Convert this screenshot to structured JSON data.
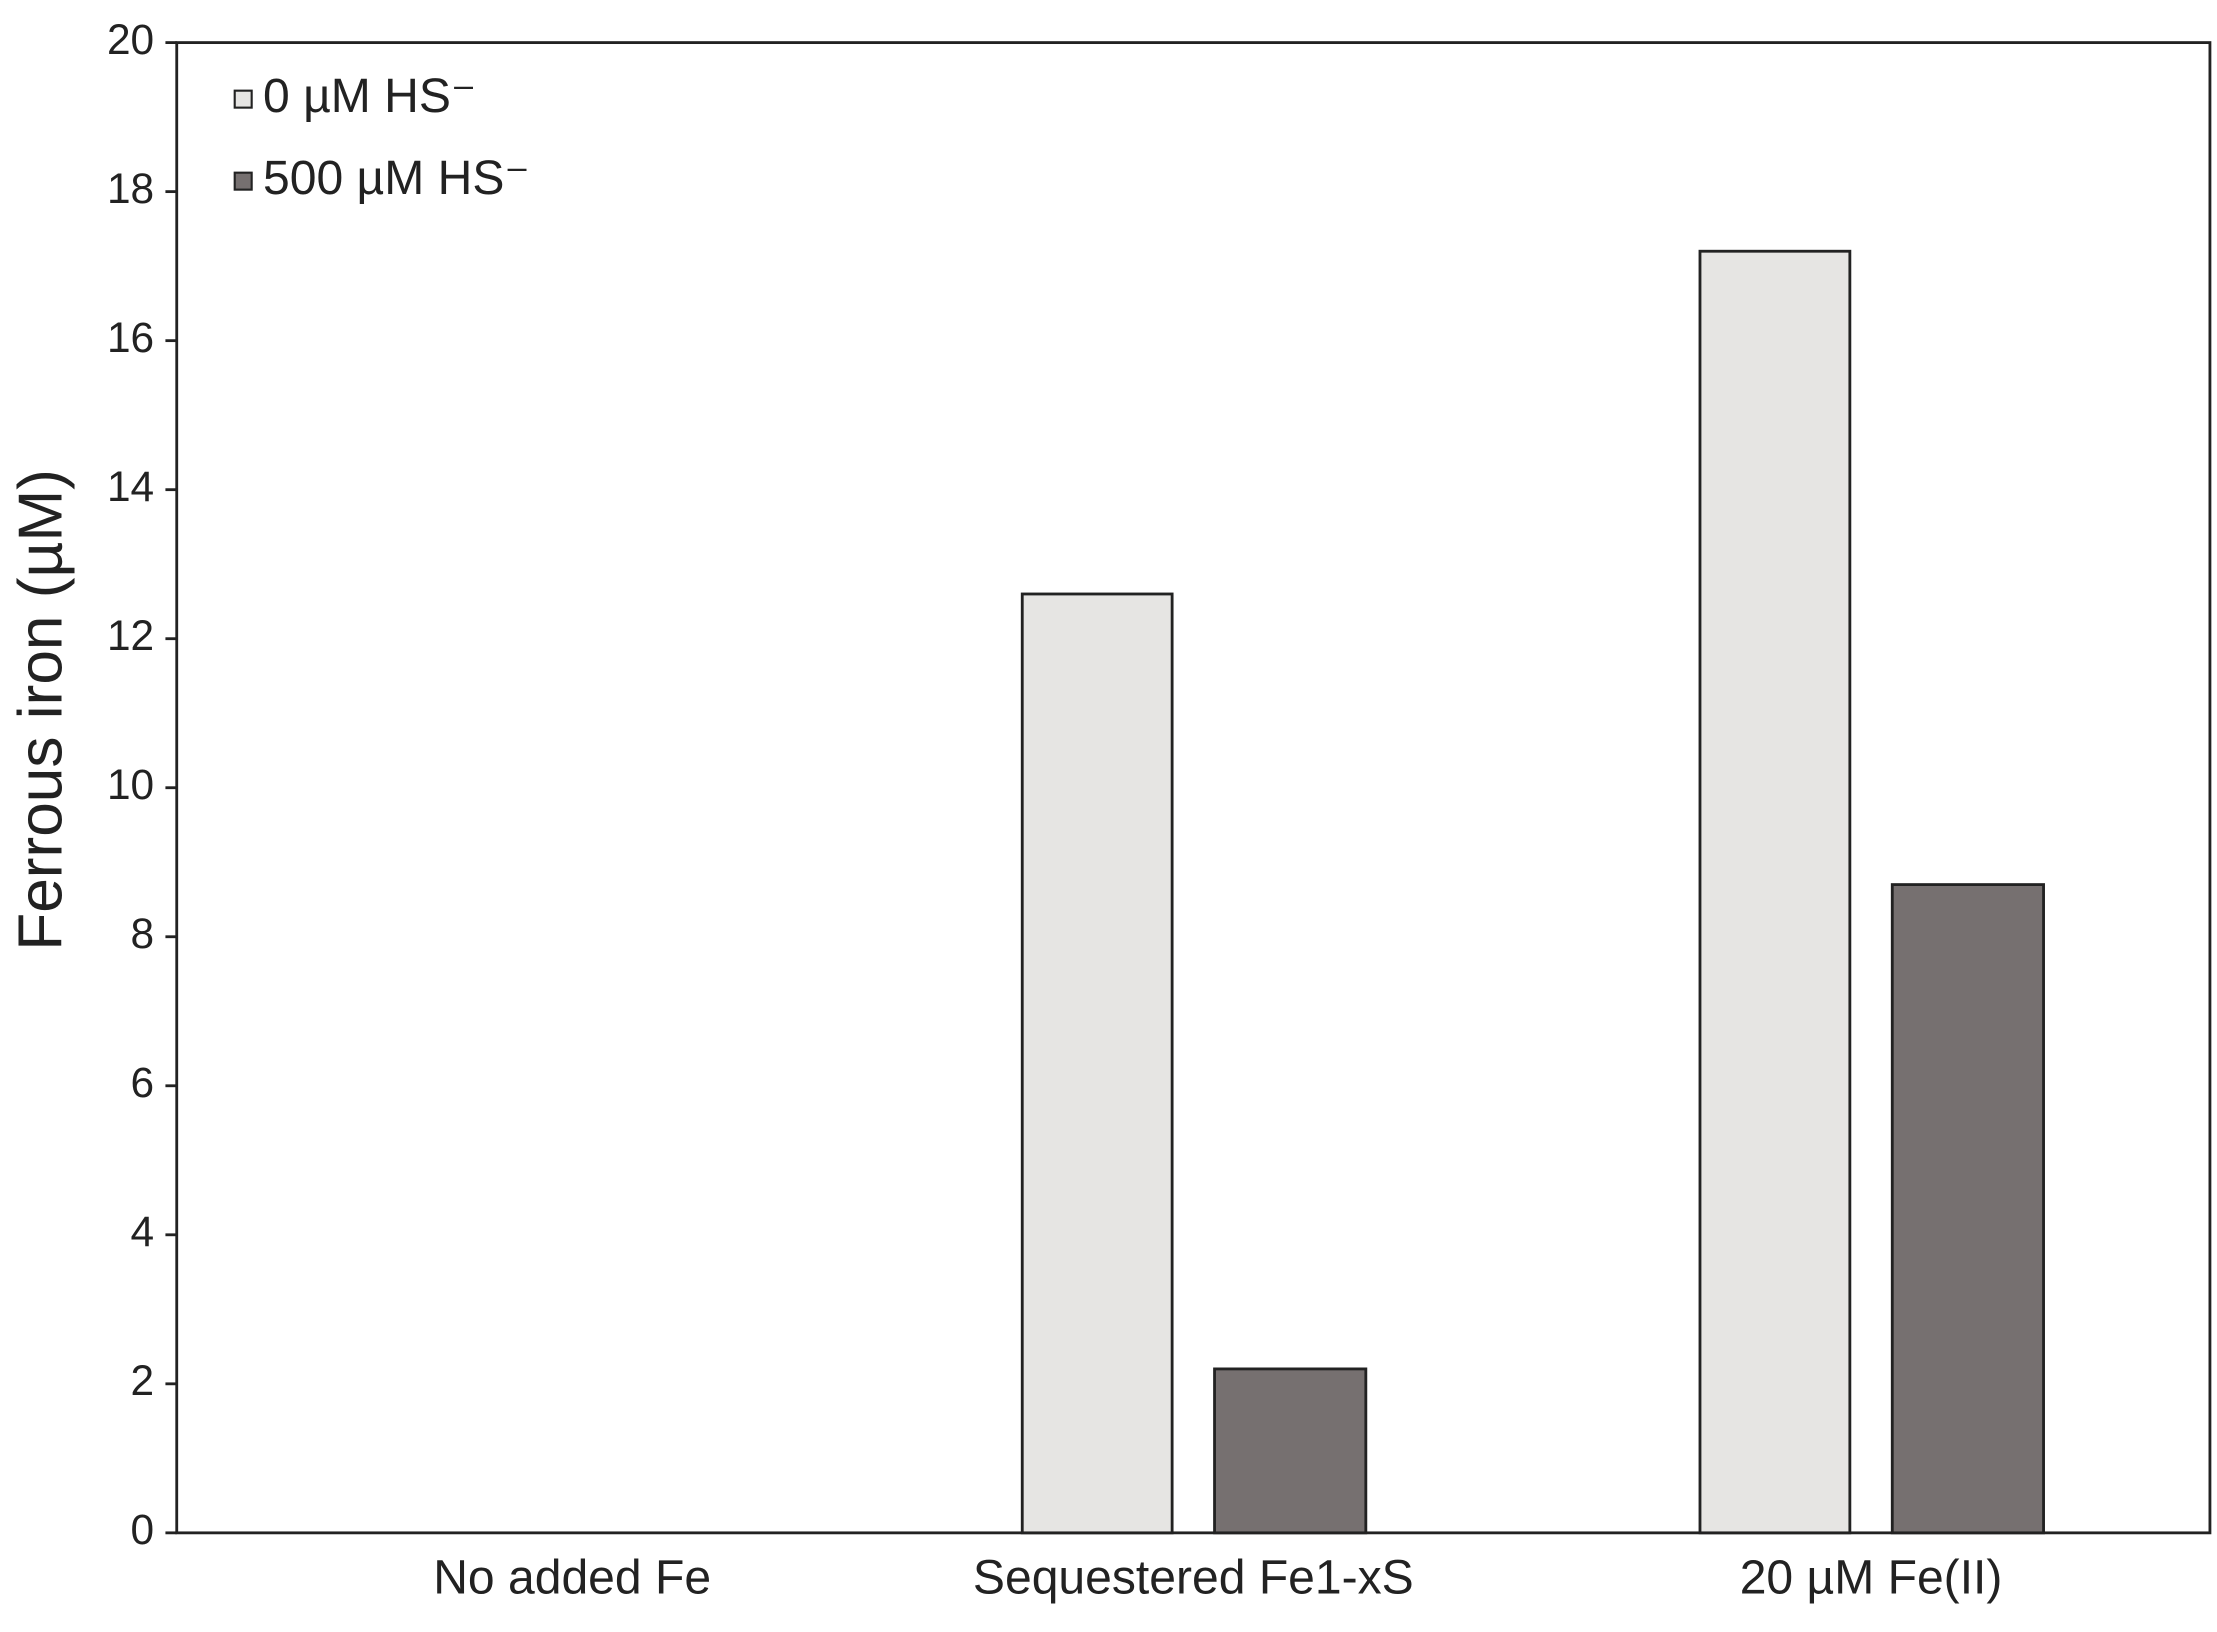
{
  "chart_data": {
    "type": "bar",
    "ylabel": "Ferrous iron (µM)",
    "categories": [
      "No added Fe",
      "Sequestered Fe1-xS",
      "20 µM Fe(II)"
    ],
    "series": [
      {
        "name": "0 µM HS⁻",
        "color": "#e6e5e3",
        "values": [
          0,
          12.6,
          17.2
        ]
      },
      {
        "name": "500 µM HS⁻",
        "color": "#767070",
        "values": [
          0,
          2.2,
          8.7
        ]
      }
    ],
    "ylim": [
      0,
      20
    ],
    "yticks": [
      0,
      2,
      4,
      6,
      8,
      10,
      12,
      14,
      16,
      18,
      20
    ],
    "legend": "upper left"
  }
}
